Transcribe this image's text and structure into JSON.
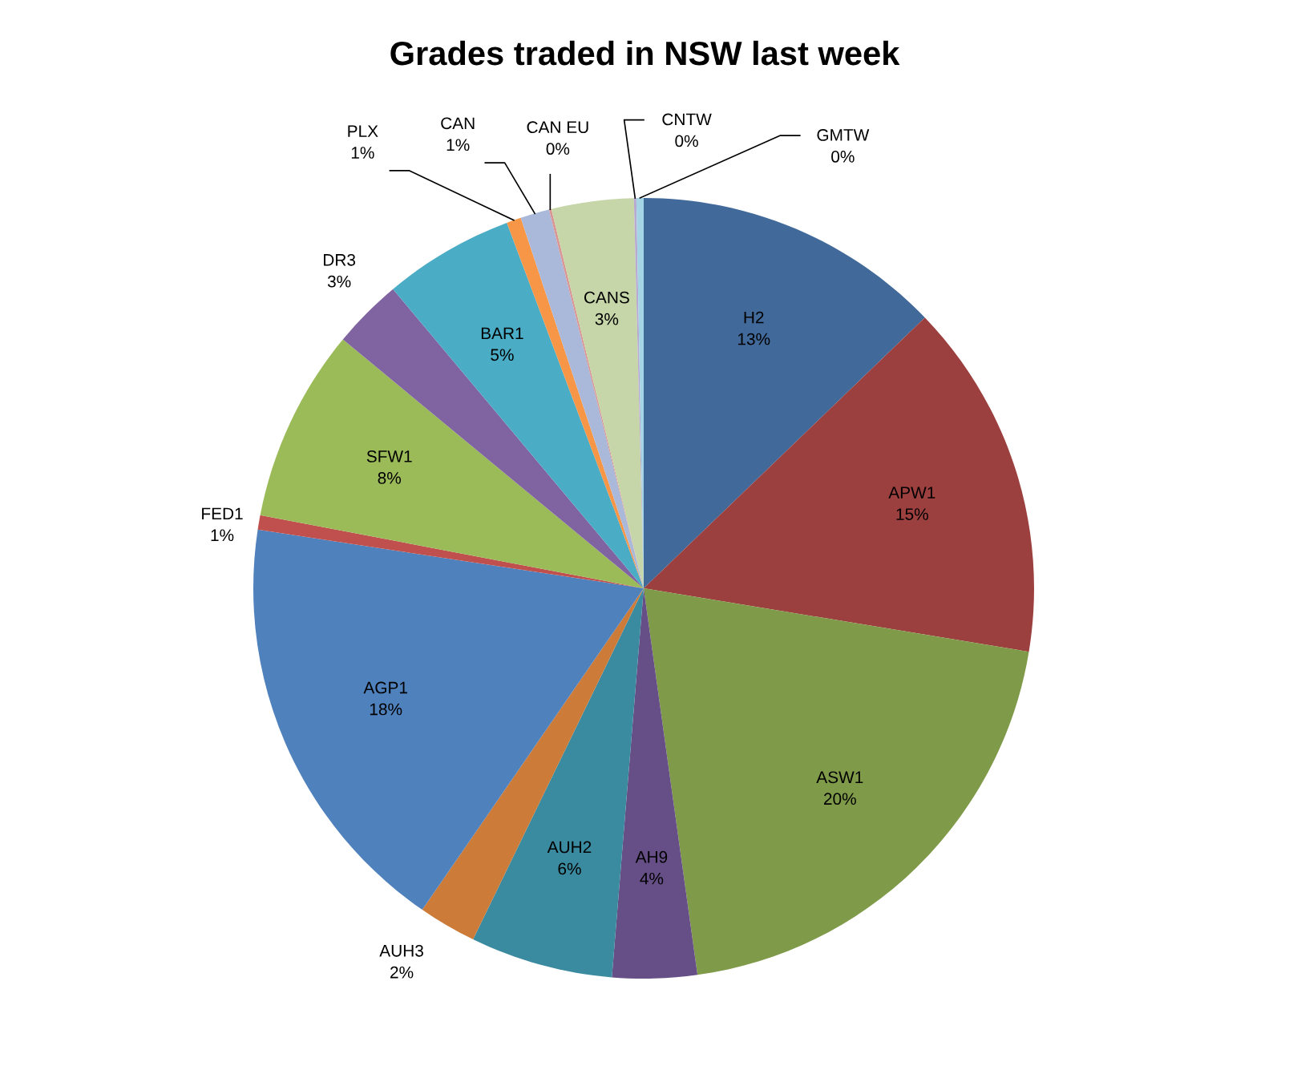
{
  "chart_data": {
    "type": "pie",
    "title": "Grades traded in NSW last week",
    "categories": [
      "H2",
      "APW1",
      "ASW1",
      "AH9",
      "AUH2",
      "AUH3",
      "AGP1",
      "FED1",
      "SFW1",
      "DR3",
      "BAR1",
      "PLX",
      "CAN",
      "CAN EU",
      "CANS",
      "CNTW",
      "GMTW"
    ],
    "values": [
      12.8,
      14.8,
      20.2,
      3.5,
      5.9,
      2.4,
      17.8,
      0.6,
      8.0,
      2.9,
      5.4,
      0.6,
      1.2,
      0.1,
      3.4,
      0.1,
      0.3
    ],
    "value_labels": [
      "13%",
      "15%",
      "20%",
      "4%",
      "6%",
      "2%",
      "18%",
      "1%",
      "8%",
      "3%",
      "5%",
      "1%",
      "1%",
      "0%",
      "3%",
      "0%",
      "0%"
    ],
    "colors": [
      "#41699a",
      "#9c403f",
      "#7f9a48",
      "#664f86",
      "#3a8aa0",
      "#cc7b38",
      "#4f81bd",
      "#c0504d",
      "#9bbb59",
      "#8064a2",
      "#4bacc6",
      "#f79646",
      "#aab9d9",
      "#d99694",
      "#c6d6a8",
      "#b7a9d0",
      "#a5d4e5"
    ]
  }
}
